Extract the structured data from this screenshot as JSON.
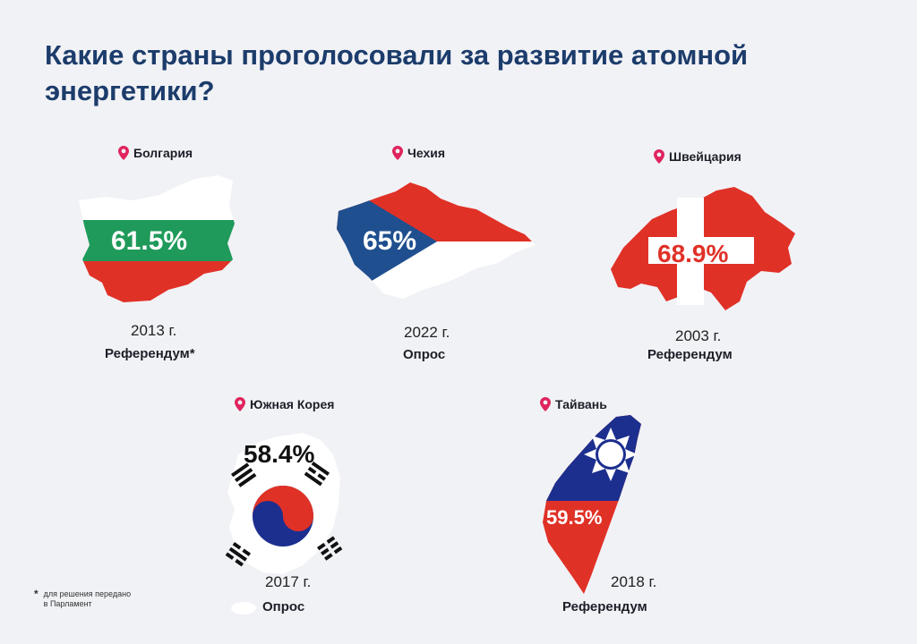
{
  "title": "Какие страны проголосовали за развитие атомной энергетики?",
  "colors": {
    "title": "#1c3c6b",
    "pin": "#e0245e",
    "green": "#1f9a5a",
    "red": "#e03127",
    "blue": "#1f4f8f",
    "navy": "#1c2f8f"
  },
  "countries": [
    {
      "name": "Болгария",
      "percent": "61.5%",
      "year": "2013 г.",
      "type": "Референдум*",
      "percent_value": 61.5
    },
    {
      "name": "Чехия",
      "percent": "65%",
      "year": "2022 г.",
      "type": "Опрос",
      "percent_value": 65
    },
    {
      "name": "Швейцария",
      "percent": "68.9%",
      "year": "2003 г.",
      "type": "Референдум",
      "percent_value": 68.9
    },
    {
      "name": "Южная Корея",
      "percent": "58.4%",
      "year": "2017 г.",
      "type": "Опрос",
      "percent_value": 58.4
    },
    {
      "name": "Тайвань",
      "percent": "59.5%",
      "year": "2018 г.",
      "type": "Референдум",
      "percent_value": 59.5
    }
  ],
  "footnote": {
    "mark": "*",
    "line1": "для решения передано",
    "line2": "в Парламент"
  },
  "icons": [
    "location-pin-icon"
  ]
}
